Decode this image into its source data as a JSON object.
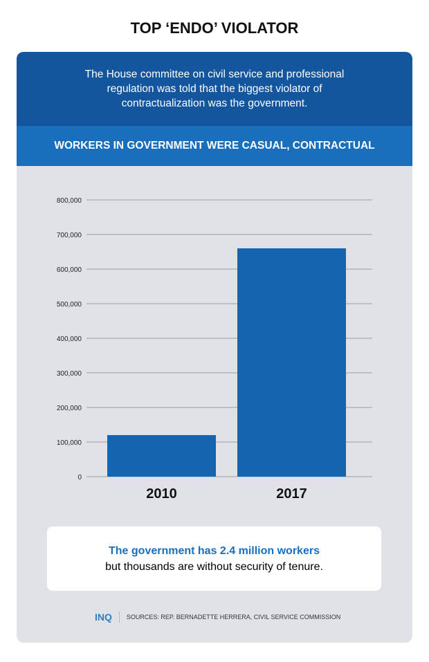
{
  "title": "TOP ‘ENDO’ VIOLATOR",
  "intro": "The House committee on civil service and professional regulation was told that the biggest violator of contractualization was the government.",
  "chart_data": {
    "type": "bar",
    "title": "WORKERS IN GOVERNMENT WERE CASUAL, CONTRACTUAL",
    "categories": [
      "2010",
      "2017"
    ],
    "values": [
      120000,
      660000
    ],
    "ylim": [
      0,
      800000
    ],
    "yticks": [
      "0",
      "100,000",
      "200,000",
      "300,000",
      "400,000",
      "500,000",
      "600,000",
      "700,000",
      "800,000"
    ],
    "xlabel": "",
    "ylabel": "",
    "grid": true,
    "color": "#1565b0"
  },
  "note": {
    "highlight": "The government has 2.4 million workers",
    "text": "but thousands are without security of tenure."
  },
  "footer": {
    "logo": "INQ",
    "sources": "SOURCES: REP. BERNADETTE HERRERA, CIVIL SERVICE COMMISSION"
  }
}
